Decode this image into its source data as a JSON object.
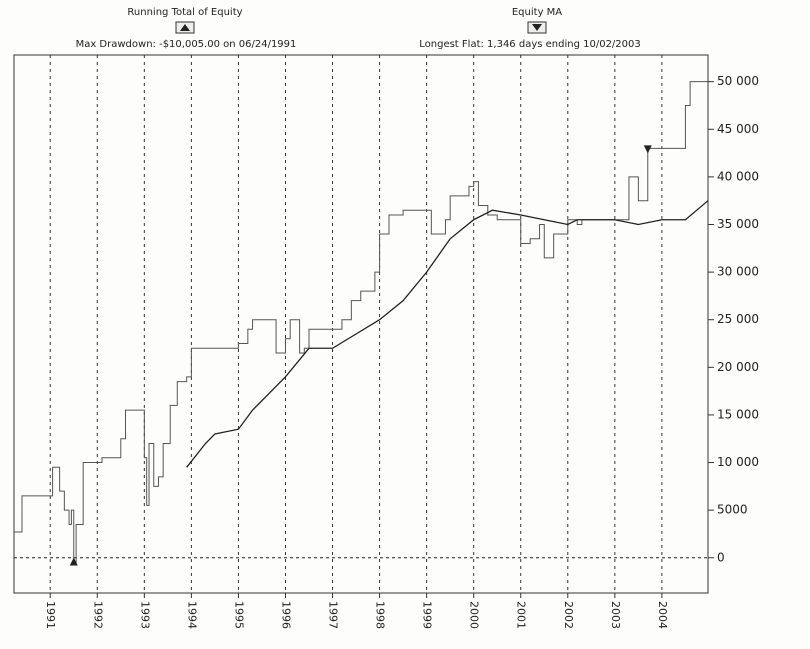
{
  "chart_data": {
    "type": "line",
    "title": "Running Total of Equity",
    "title2": "Equity MA",
    "subtitle": "Max Drawdown: -$10,005.00 on 06/24/1991",
    "subtitle2": "Longest Flat: 1,346 days ending 10/02/2003",
    "xlim": [
      1990.23,
      2004.98
    ],
    "xticks": [
      1991,
      1992,
      1993,
      1994,
      1995,
      1996,
      1997,
      1998,
      1999,
      2000,
      2001,
      2002,
      2003,
      2004
    ],
    "ylim": [
      -3700,
      52800
    ],
    "yticks": [
      0,
      5000,
      {
        "value": 10000,
        "label": "10 000"
      },
      {
        "value": 15000,
        "label": "15 000"
      },
      {
        "value": 20000,
        "label": "20 000"
      },
      {
        "value": 25000,
        "label": "25 000"
      },
      {
        "value": 30000,
        "label": "30 000"
      },
      {
        "value": 35000,
        "label": "35 000"
      },
      {
        "value": 40000,
        "label": "40 000"
      },
      {
        "value": 45000,
        "label": "45 000"
      },
      {
        "value": 50000,
        "label": "50 000"
      }
    ],
    "grid": true,
    "zero_line": true,
    "series": [
      {
        "name": "Running Total of Equity",
        "color": "#555555",
        "step": true,
        "x": [
          1990.23,
          1990.4,
          1991.0,
          1991.05,
          1991.2,
          1991.3,
          1991.4,
          1991.45,
          1991.5,
          1991.55,
          1991.7,
          1992.0,
          1992.1,
          1992.5,
          1992.6,
          1992.95,
          1993.0,
          1993.05,
          1993.1,
          1993.2,
          1993.3,
          1993.4,
          1993.55,
          1993.7,
          1993.9,
          1994.0,
          1995.0,
          1995.2,
          1995.3,
          1995.7,
          1995.8,
          1996.0,
          1996.1,
          1996.3,
          1996.4,
          1996.5,
          1997.0,
          1997.2,
          1997.4,
          1997.6,
          1997.9,
          1998.0,
          1998.2,
          1998.5,
          1999.0,
          1999.1,
          1999.4,
          1999.5,
          1999.9,
          2000.0,
          2000.1,
          2000.3,
          2000.5,
          2001.0,
          2001.2,
          2001.4,
          2001.5,
          2001.7,
          2002.0,
          2002.2,
          2002.3,
          2003.0,
          2003.3,
          2003.5,
          2003.7,
          2004.5,
          2004.6,
          2004.98
        ],
        "values": [
          2700,
          6500,
          6500,
          9500,
          7000,
          5000,
          3500,
          5000,
          -500,
          3500,
          10000,
          10000,
          10500,
          12500,
          15500,
          15500,
          10500,
          5500,
          12000,
          7500,
          8500,
          12000,
          16000,
          18500,
          19000,
          22000,
          22500,
          24000,
          25000,
          25000,
          21500,
          23000,
          25000,
          21500,
          22000,
          24000,
          24000,
          25000,
          27000,
          28000,
          30000,
          34000,
          36000,
          36500,
          36500,
          34000,
          35500,
          38000,
          39000,
          39500,
          37000,
          36000,
          35500,
          33000,
          33500,
          35000,
          31500,
          34000,
          35500,
          35000,
          35500,
          35500,
          40000,
          37500,
          43000,
          47500,
          50000,
          50000
        ]
      },
      {
        "name": "Equity MA",
        "color": "#222222",
        "step": false,
        "x": [
          1993.9,
          1994.3,
          1994.5,
          1995.0,
          1995.3,
          1996.0,
          1996.5,
          1997.0,
          1997.5,
          1998.0,
          1998.5,
          1999.0,
          1999.5,
          2000.0,
          2000.4,
          2001.0,
          2001.5,
          2002.0,
          2002.2,
          2003.0,
          2003.5,
          2004.0,
          2004.5,
          2004.98
        ],
        "values": [
          9500,
          12000,
          13000,
          13500,
          15500,
          19000,
          22000,
          22000,
          23500,
          25000,
          27000,
          30000,
          33500,
          35500,
          36500,
          36000,
          35500,
          35000,
          35500,
          35500,
          35000,
          35500,
          35500,
          37500
        ]
      }
    ],
    "markers": [
      {
        "x": 1991.5,
        "value": -500,
        "shape": "up"
      },
      {
        "x": 2003.7,
        "value": 43000,
        "shape": "down"
      }
    ]
  }
}
